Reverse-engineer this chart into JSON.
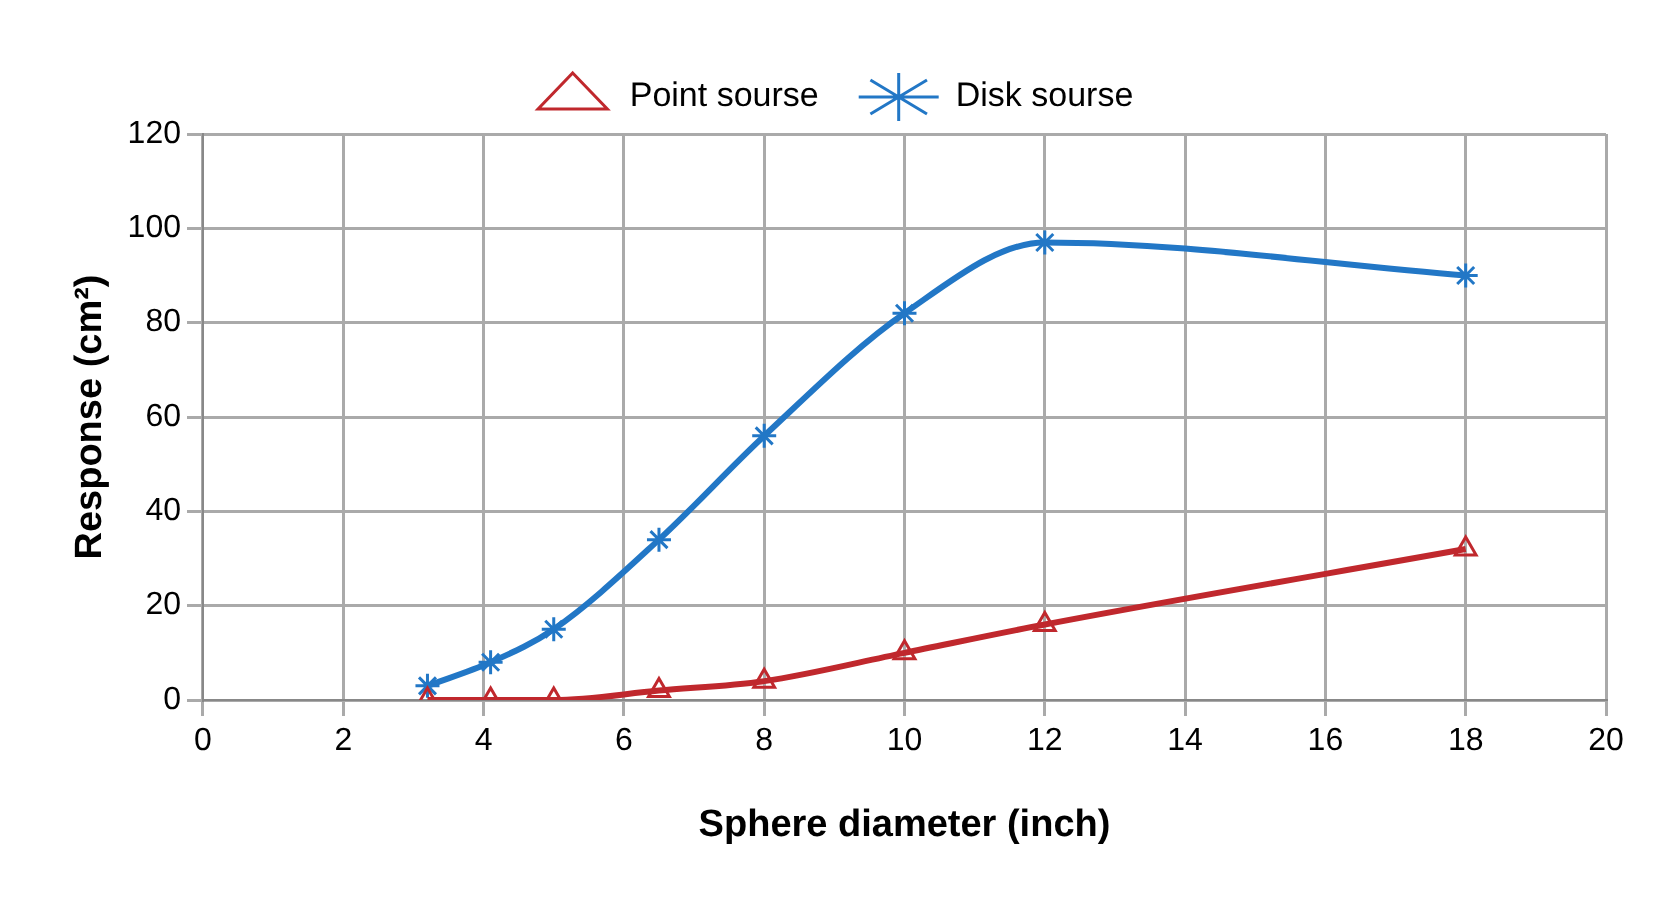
{
  "chart_data": {
    "type": "line",
    "xlabel": "Sphere diameter (inch)",
    "ylabel": "Response (cm²)",
    "x": [
      3.2,
      4.1,
      5,
      6.5,
      8,
      10,
      12,
      18
    ],
    "series": [
      {
        "name": "Point sourse",
        "color": "#c0282d",
        "marker": "triangle",
        "values": [
          0,
          0,
          0,
          2,
          4,
          10,
          16,
          32
        ]
      },
      {
        "name": "Disk sourse",
        "color": "#2277c6",
        "marker": "cross",
        "values": [
          3,
          8,
          15,
          34,
          56,
          82,
          97,
          90
        ]
      }
    ],
    "xlim": [
      0,
      20
    ],
    "xticks": [
      0,
      2,
      4,
      6,
      8,
      10,
      12,
      14,
      16,
      18,
      20
    ],
    "ylim": [
      0,
      120
    ],
    "yticks": [
      0,
      20,
      40,
      60,
      80,
      100,
      120
    ],
    "grid": true,
    "legend": "top"
  }
}
